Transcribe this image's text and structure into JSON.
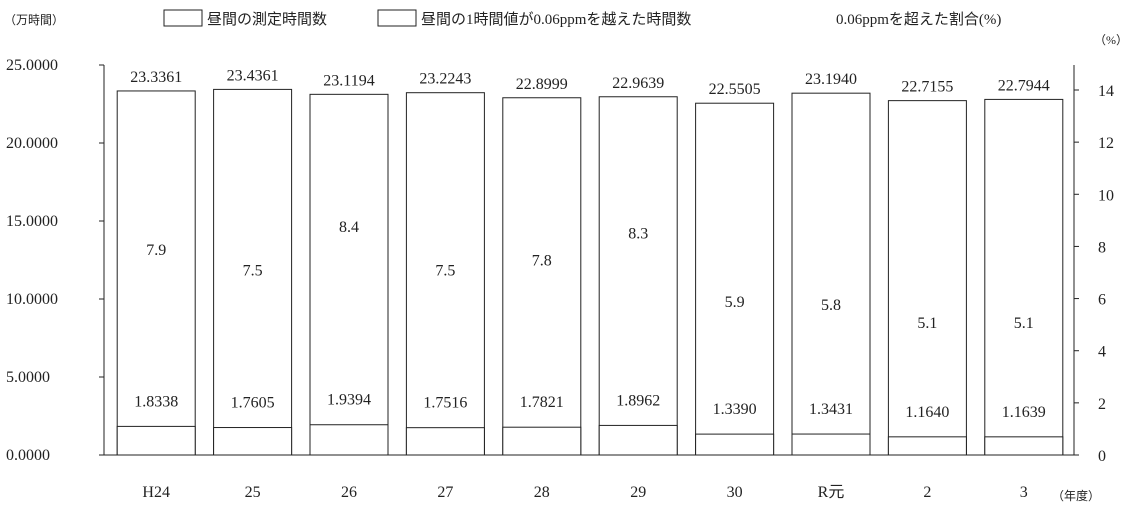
{
  "chart_data": {
    "type": "bar",
    "categories": [
      "H24",
      "25",
      "26",
      "27",
      "28",
      "29",
      "30",
      "R元",
      "2",
      "3"
    ],
    "x_unit": "（年度）",
    "y_left_unit": "（万時間）",
    "y_right_unit": "（%）",
    "y_left_ticks": [
      "0.0000",
      "5.0000",
      "10.0000",
      "15.0000",
      "20.0000",
      "25.0000"
    ],
    "y_right_ticks": [
      "0",
      "2",
      "4",
      "6",
      "8",
      "10",
      "12",
      "14"
    ],
    "ylim_left": [
      0,
      25
    ],
    "ylim_right": [
      0,
      14.5
    ],
    "series": [
      {
        "name": "昼間の測定時間数",
        "role": "total_bar",
        "values": [
          23.3361,
          23.4361,
          23.1194,
          23.2243,
          22.8999,
          22.9639,
          22.5505,
          23.194,
          22.7155,
          22.7944
        ],
        "labels": [
          "23.3361",
          "23.4361",
          "23.1194",
          "23.2243",
          "22.8999",
          "22.9639",
          "22.5505",
          "23.1940",
          "22.7155",
          "22.7944"
        ]
      },
      {
        "name": "昼間の1時間値が0.06ppmを越えた時間数",
        "role": "exceed_bar",
        "values": [
          1.8338,
          1.7605,
          1.9394,
          1.7516,
          1.7821,
          1.8962,
          1.339,
          1.3431,
          1.164,
          1.1639
        ],
        "labels": [
          "1.8338",
          "1.7605",
          "1.9394",
          "1.7516",
          "1.7821",
          "1.8962",
          "1.3390",
          "1.3431",
          "1.1640",
          "1.1639"
        ]
      },
      {
        "name": "0.06ppmを超えた割合(%)",
        "role": "percent",
        "values": [
          7.9,
          7.5,
          8.4,
          7.5,
          7.8,
          8.3,
          5.9,
          5.8,
          5.1,
          5.1
        ],
        "labels": [
          "7.9",
          "7.5",
          "8.4",
          "7.5",
          "7.8",
          "8.3",
          "5.9",
          "5.8",
          "5.1",
          "5.1"
        ]
      }
    ],
    "colors": {
      "bar_fill": "#ffffff",
      "bar_stroke": "#222222",
      "axis": "#222222"
    }
  }
}
